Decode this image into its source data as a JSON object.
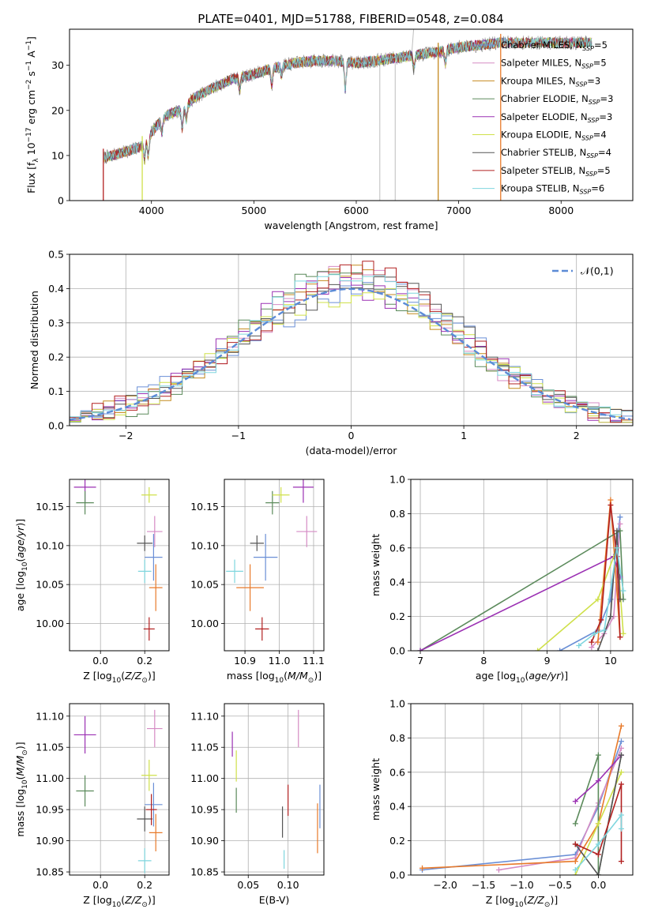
{
  "figure": {
    "title": "PLATE=0401, MJD=51788, FIBERID=0548, z=0.084"
  },
  "colors": {
    "Chabrier MILES": "#6a8fd6",
    "Salpeter MILES": "#d58bc4",
    "Kroupa MILES": "#c48a1f",
    "Chabrier ELODIE": "#5b8a5b",
    "Salpeter ELODIE": "#9b30b3",
    "Kroupa ELODIE": "#cfe04a",
    "Chabrier STELIB": "#555555",
    "Salpeter STELIB": "#b22020",
    "Kroupa STELIB": "#7fd6de"
  },
  "chart_data": [
    {
      "id": "spectrum",
      "type": "line",
      "xlabel": "wavelength [Angstrom, rest frame]",
      "ylabel": "Flux [f_λ 10^-17 erg cm^-2 s^-1 A^-1]",
      "xlim": [
        3200,
        8700
      ],
      "ylim": [
        0,
        38
      ],
      "xticks": [
        4000,
        5000,
        6000,
        7000,
        8000
      ],
      "yticks": [
        0,
        10,
        20,
        30
      ],
      "grid": false,
      "legend_position": "right",
      "legend": [
        {
          "name": "Chabrier MILES",
          "base": "Chabrier MILES, N",
          "sub": "SSP",
          "tail": "=5"
        },
        {
          "name": "Salpeter MILES",
          "base": "Salpeter MILES, N",
          "sub": "SSP",
          "tail": "=5"
        },
        {
          "name": "Kroupa MILES",
          "base": "Kroupa MILES, N",
          "sub": "SSP",
          "tail": "=3"
        },
        {
          "name": "Chabrier ELODIE",
          "base": "Chabrier ELODIE, N",
          "sub": "SSP",
          "tail": "=3"
        },
        {
          "name": "Salpeter ELODIE",
          "base": "Salpeter ELODIE, N",
          "sub": "SSP",
          "tail": "=3"
        },
        {
          "name": "Kroupa ELODIE",
          "base": "Kroupa ELODIE, N",
          "sub": "SSP",
          "tail": "=4"
        },
        {
          "name": "Chabrier STELIB",
          "base": "Chabrier STELIB, N",
          "sub": "SSP",
          "tail": "=4"
        },
        {
          "name": "Salpeter STELIB",
          "base": "Salpeter STELIB, N",
          "sub": "SSP",
          "tail": "=5"
        },
        {
          "name": "Kroupa STELIB",
          "base": "Kroupa STELIB, N",
          "sub": "SSP",
          "tail": "=6"
        }
      ],
      "continuum_points": [
        [
          3530,
          9.5
        ],
        [
          3700,
          10.5
        ],
        [
          3900,
          12
        ],
        [
          4000,
          15
        ],
        [
          4100,
          18
        ],
        [
          4200,
          19.5
        ],
        [
          4300,
          20
        ],
        [
          4400,
          22.5
        ],
        [
          4600,
          25
        ],
        [
          4800,
          27
        ],
        [
          5000,
          28
        ],
        [
          5200,
          29.5
        ],
        [
          5400,
          30.5
        ],
        [
          5600,
          31
        ],
        [
          5800,
          31
        ],
        [
          6000,
          30.5
        ],
        [
          6200,
          31
        ],
        [
          6500,
          32
        ],
        [
          6800,
          33
        ],
        [
          7000,
          34
        ],
        [
          7200,
          34.5
        ],
        [
          7420,
          35
        ]
      ],
      "absorption_features": [
        {
          "x": 3934,
          "depth": 4
        },
        {
          "x": 3969,
          "depth": 4
        },
        {
          "x": 4102,
          "depth": 3
        },
        {
          "x": 4300,
          "depth": 4
        },
        {
          "x": 4340,
          "depth": 3
        },
        {
          "x": 4861,
          "depth": 3
        },
        {
          "x": 5175,
          "depth": 4
        },
        {
          "x": 5270,
          "depth": 2
        },
        {
          "x": 5893,
          "depth": 6
        },
        {
          "x": 6563,
          "depth": 3
        },
        {
          "x": 6870,
          "depth": 3
        }
      ],
      "data_drops": [
        {
          "x": 3530,
          "model": "Salpeter STELIB"
        },
        {
          "x": 3910,
          "model": "Kroupa ELODIE"
        },
        {
          "x": 6230,
          "model": "data",
          "to": 0
        },
        {
          "x": 6380,
          "model": "data",
          "to": 0
        },
        {
          "x": 6800,
          "model": "Kroupa MILES"
        },
        {
          "x": 7410,
          "model": "Kroupa MILES"
        }
      ]
    },
    {
      "id": "residuals",
      "type": "histogram",
      "xlabel": "(data-model)/error",
      "ylabel": "Normed distribution",
      "xlim": [
        -2.5,
        2.5
      ],
      "ylim": [
        0,
        0.5
      ],
      "xticks": [
        -2,
        -1,
        0,
        1,
        2
      ],
      "yticks": [
        0.0,
        0.1,
        0.2,
        0.3,
        0.4,
        0.5
      ],
      "grid": true,
      "bin_width": 0.1,
      "reference": {
        "label": "𝒩(0,1)",
        "mean": 0,
        "sigma": 1
      },
      "legend_position": "upper right",
      "series": [
        {
          "name": "Chabrier MILES",
          "envelope_sigma": 1.05,
          "peak": 0.4
        },
        {
          "name": "Salpeter MILES",
          "envelope_sigma": 1.0,
          "peak": 0.42
        },
        {
          "name": "Kroupa MILES",
          "envelope_sigma": 1.02,
          "peak": 0.41
        },
        {
          "name": "Chabrier ELODIE",
          "envelope_sigma": 0.95,
          "peak": 0.43
        },
        {
          "name": "Salpeter ELODIE",
          "envelope_sigma": 0.98,
          "peak": 0.44
        },
        {
          "name": "Kroupa ELODIE",
          "envelope_sigma": 0.96,
          "peak": 0.42
        },
        {
          "name": "Chabrier STELIB",
          "envelope_sigma": 1.0,
          "peak": 0.42
        },
        {
          "name": "Salpeter STELIB",
          "envelope_sigma": 1.02,
          "peak": 0.43
        },
        {
          "name": "Kroupa STELIB",
          "envelope_sigma": 1.05,
          "peak": 0.41
        }
      ]
    },
    {
      "id": "age_vs_Z",
      "type": "scatter",
      "xlabel": "Z [log10(Z/Z☉)]",
      "ylabel": "age [log10(age/yr)]",
      "xlim": [
        -0.14,
        0.31
      ],
      "ylim": [
        9.965,
        10.185
      ],
      "xticks": [
        0.0,
        0.2
      ],
      "yticks": [
        10.0,
        10.05,
        10.1,
        10.15
      ],
      "grid": true,
      "points": [
        {
          "model": "Salpeter ELODIE",
          "x": -0.07,
          "y": 10.175,
          "xerr": 0.05,
          "yerr": 0.02
        },
        {
          "model": "Chabrier ELODIE",
          "x": -0.07,
          "y": 10.155,
          "xerr": 0.04,
          "yerr": 0.015
        },
        {
          "model": "Kroupa ELODIE",
          "x": 0.22,
          "y": 10.165,
          "xerr": 0.035,
          "yerr": 0.01
        },
        {
          "model": "Salpeter MILES",
          "x": 0.245,
          "y": 10.118,
          "xerr": 0.035,
          "yerr": 0.02
        },
        {
          "model": "Chabrier STELIB",
          "x": 0.2,
          "y": 10.103,
          "xerr": 0.035,
          "yerr": 0.01
        },
        {
          "model": "Chabrier MILES",
          "x": 0.24,
          "y": 10.085,
          "xerr": 0.04,
          "yerr": 0.03
        },
        {
          "model": "Kroupa STELIB",
          "x": 0.2,
          "y": 10.067,
          "xerr": 0.03,
          "yerr": 0.015
        },
        {
          "model": "Kroupa MILES",
          "x": 0.25,
          "y": 10.046,
          "xerr": 0.03,
          "yerr": 0.03
        },
        {
          "model": "Salpeter STELIB",
          "x": 0.22,
          "y": 9.993,
          "xerr": 0.025,
          "yerr": 0.015
        }
      ]
    },
    {
      "id": "age_vs_mass",
      "type": "scatter",
      "xlabel": "mass [log10(M/M☉)]",
      "ylabel": "",
      "xlim": [
        10.84,
        11.13
      ],
      "ylim": [
        9.965,
        10.185
      ],
      "xticks": [
        10.9,
        11.0,
        11.1
      ],
      "yticks": [
        10.0,
        10.05,
        10.1,
        10.15
      ],
      "grid": true,
      "points": [
        {
          "model": "Salpeter ELODIE",
          "x": 11.07,
          "y": 10.175,
          "xerr": 0.03,
          "yerr": 0.02
        },
        {
          "model": "Chabrier ELODIE",
          "x": 10.98,
          "y": 10.155,
          "xerr": 0.02,
          "yerr": 0.015
        },
        {
          "model": "Kroupa ELODIE",
          "x": 11.005,
          "y": 10.165,
          "xerr": 0.025,
          "yerr": 0.01
        },
        {
          "model": "Salpeter MILES",
          "x": 11.08,
          "y": 10.118,
          "xerr": 0.03,
          "yerr": 0.02
        },
        {
          "model": "Chabrier STELIB",
          "x": 10.935,
          "y": 10.103,
          "xerr": 0.02,
          "yerr": 0.01
        },
        {
          "model": "Chabrier MILES",
          "x": 10.96,
          "y": 10.085,
          "xerr": 0.035,
          "yerr": 0.03
        },
        {
          "model": "Kroupa STELIB",
          "x": 10.87,
          "y": 10.067,
          "xerr": 0.025,
          "yerr": 0.015
        },
        {
          "model": "Kroupa MILES",
          "x": 10.915,
          "y": 10.046,
          "xerr": 0.04,
          "yerr": 0.03
        },
        {
          "model": "Salpeter STELIB",
          "x": 10.95,
          "y": 9.993,
          "xerr": 0.02,
          "yerr": 0.015
        }
      ]
    },
    {
      "id": "mass_weight_vs_age",
      "type": "line",
      "xlabel": "age [log10(age/yr)]",
      "ylabel": "mass weight",
      "xlim": [
        6.85,
        10.35
      ],
      "ylim": [
        0,
        1.0
      ],
      "xticks": [
        7,
        8,
        9,
        10
      ],
      "yticks": [
        0.0,
        0.2,
        0.4,
        0.6,
        0.8,
        1.0
      ],
      "grid": true,
      "series": [
        {
          "name": "Chabrier MILES",
          "x": [
            9.2,
            9.8,
            10.0,
            10.15
          ],
          "y": [
            0.0,
            0.12,
            0.3,
            0.78
          ]
        },
        {
          "name": "Salpeter MILES",
          "x": [
            9.7,
            9.9,
            10.05,
            10.15
          ],
          "y": [
            0.02,
            0.1,
            0.2,
            0.74
          ]
        },
        {
          "name": "Kroupa MILES",
          "x": [
            9.8,
            10.0,
            10.15
          ],
          "y": [
            0.05,
            0.88,
            0.08
          ]
        },
        {
          "name": "Chabrier ELODIE",
          "x": [
            7.0,
            10.15,
            10.2
          ],
          "y": [
            0.0,
            0.7,
            0.3
          ]
        },
        {
          "name": "Salpeter ELODIE",
          "x": [
            7.0,
            10.05,
            10.15
          ],
          "y": [
            0.0,
            0.55,
            0.43
          ]
        },
        {
          "name": "Kroupa ELODIE",
          "x": [
            8.85,
            9.8,
            10.1,
            10.2
          ],
          "y": [
            0.0,
            0.3,
            0.6,
            0.1
          ]
        },
        {
          "name": "Chabrier STELIB",
          "x": [
            9.8,
            10.0,
            10.1,
            10.15
          ],
          "y": [
            0.0,
            0.2,
            0.7,
            0.3
          ]
        },
        {
          "name": "Salpeter STELIB",
          "x": [
            9.7,
            9.85,
            10.0,
            10.1,
            10.15
          ],
          "y": [
            0.05,
            0.18,
            0.85,
            0.55,
            0.08
          ]
        },
        {
          "name": "Kroupa STELIB",
          "x": [
            9.5,
            9.75,
            9.9,
            10.1,
            10.2
          ],
          "y": [
            0.03,
            0.1,
            0.12,
            0.6,
            0.35
          ]
        }
      ]
    },
    {
      "id": "mass_vs_Z",
      "type": "scatter",
      "xlabel": "Z [log10(Z/Z☉)]",
      "ylabel": "mass [log10(M/M☉)]",
      "xlim": [
        -0.14,
        0.31
      ],
      "ylim": [
        10.845,
        11.12
      ],
      "xticks": [
        0.0,
        0.2
      ],
      "yticks": [
        10.85,
        10.9,
        10.95,
        11.0,
        11.05,
        11.1
      ],
      "grid": true,
      "points": [
        {
          "model": "Salpeter ELODIE",
          "x": -0.07,
          "y": 11.07,
          "xerr": 0.05,
          "yerr": 0.03
        },
        {
          "model": "Chabrier ELODIE",
          "x": -0.07,
          "y": 10.98,
          "xerr": 0.04,
          "yerr": 0.025
        },
        {
          "model": "Kroupa ELODIE",
          "x": 0.22,
          "y": 11.005,
          "xerr": 0.035,
          "yerr": 0.025
        },
        {
          "model": "Salpeter MILES",
          "x": 0.245,
          "y": 11.08,
          "xerr": 0.035,
          "yerr": 0.03
        },
        {
          "model": "Chabrier STELIB",
          "x": 0.2,
          "y": 10.935,
          "xerr": 0.035,
          "yerr": 0.02
        },
        {
          "model": "Chabrier MILES",
          "x": 0.24,
          "y": 10.958,
          "xerr": 0.04,
          "yerr": 0.035
        },
        {
          "model": "Kroupa STELIB",
          "x": 0.2,
          "y": 10.868,
          "xerr": 0.03,
          "yerr": 0.02
        },
        {
          "model": "Kroupa MILES",
          "x": 0.25,
          "y": 10.913,
          "xerr": 0.03,
          "yerr": 0.03
        },
        {
          "model": "Salpeter STELIB",
          "x": 0.23,
          "y": 10.95,
          "xerr": 0.025,
          "yerr": 0.025
        }
      ]
    },
    {
      "id": "mass_vs_EBV",
      "type": "scatter",
      "xlabel": "E(B-V)",
      "ylabel": "",
      "xlim": [
        0.02,
        0.145
      ],
      "ylim": [
        10.845,
        11.12
      ],
      "xticks": [
        0.05,
        0.1
      ],
      "yticks": [
        10.85,
        10.9,
        10.95,
        11.0,
        11.05,
        11.1
      ],
      "grid": true,
      "points": [
        {
          "model": "Salpeter ELODIE",
          "x": 0.03,
          "y": 11.055,
          "xerr": 0,
          "yerr": 0.02
        },
        {
          "model": "Kroupa ELODIE",
          "x": 0.035,
          "y": 11.02,
          "xerr": 0,
          "yerr": 0.025
        },
        {
          "model": "Chabrier ELODIE",
          "x": 0.035,
          "y": 10.965,
          "xerr": 0,
          "yerr": 0.02
        },
        {
          "model": "Salpeter MILES",
          "x": 0.113,
          "y": 11.08,
          "xerr": 0,
          "yerr": 0.03
        },
        {
          "model": "Chabrier STELIB",
          "x": 0.093,
          "y": 10.93,
          "xerr": 0,
          "yerr": 0.025
        },
        {
          "model": "Kroupa STELIB",
          "x": 0.095,
          "y": 10.87,
          "xerr": 0,
          "yerr": 0.015
        },
        {
          "model": "Salpeter STELIB",
          "x": 0.1,
          "y": 10.965,
          "xerr": 0,
          "yerr": 0.025
        },
        {
          "model": "Chabrier MILES",
          "x": 0.14,
          "y": 10.955,
          "xerr": 0,
          "yerr": 0.035
        },
        {
          "model": "Kroupa MILES",
          "x": 0.137,
          "y": 10.92,
          "xerr": 0,
          "yerr": 0.04
        }
      ]
    },
    {
      "id": "mass_weight_vs_Z",
      "type": "line",
      "xlabel": "Z [log10(Z/Z☉)]",
      "ylabel": "mass weight",
      "xlim": [
        -2.45,
        0.45
      ],
      "ylim": [
        0,
        1.0
      ],
      "xticks": [
        -2.0,
        -1.5,
        -1.0,
        -0.5,
        0.0
      ],
      "yticks": [
        0.0,
        0.2,
        0.4,
        0.6,
        0.8,
        1.0
      ],
      "grid": true,
      "series": [
        {
          "name": "Chabrier MILES",
          "x": [
            -2.3,
            -0.3,
            0.0,
            0.3
          ],
          "y": [
            0.03,
            0.12,
            0.4,
            0.78
          ]
        },
        {
          "name": "Salpeter MILES",
          "x": [
            -1.3,
            -0.3,
            0.0,
            0.3
          ],
          "y": [
            0.03,
            0.1,
            0.42,
            0.74
          ]
        },
        {
          "name": "Kroupa MILES",
          "x": [
            -2.3,
            -0.3,
            0.0,
            0.3
          ],
          "y": [
            0.04,
            0.08,
            0.3,
            0.87
          ]
        },
        {
          "name": "Chabrier ELODIE",
          "x": [
            -0.3,
            0.0,
            0.0,
            0.3
          ],
          "y": [
            0.3,
            0.7,
            0.0,
            0.7
          ]
        },
        {
          "name": "Salpeter ELODIE",
          "x": [
            -0.3,
            0.0,
            0.3
          ],
          "y": [
            0.43,
            0.55,
            0.7
          ]
        },
        {
          "name": "Kroupa ELODIE",
          "x": [
            -0.3,
            0.0,
            0.3
          ],
          "y": [
            0.0,
            0.3,
            0.6
          ]
        },
        {
          "name": "Chabrier STELIB",
          "x": [
            -0.3,
            0.0,
            0.3
          ],
          "y": [
            0.18,
            0.0,
            0.7
          ]
        },
        {
          "name": "Salpeter STELIB",
          "x": [
            -0.3,
            0.0,
            0.3,
            0.3
          ],
          "y": [
            0.18,
            0.12,
            0.53,
            0.08
          ]
        },
        {
          "name": "Kroupa STELIB",
          "x": [
            -0.3,
            0.0,
            0.3,
            0.3
          ],
          "y": [
            0.03,
            0.18,
            0.35,
            0.27
          ]
        }
      ]
    }
  ]
}
